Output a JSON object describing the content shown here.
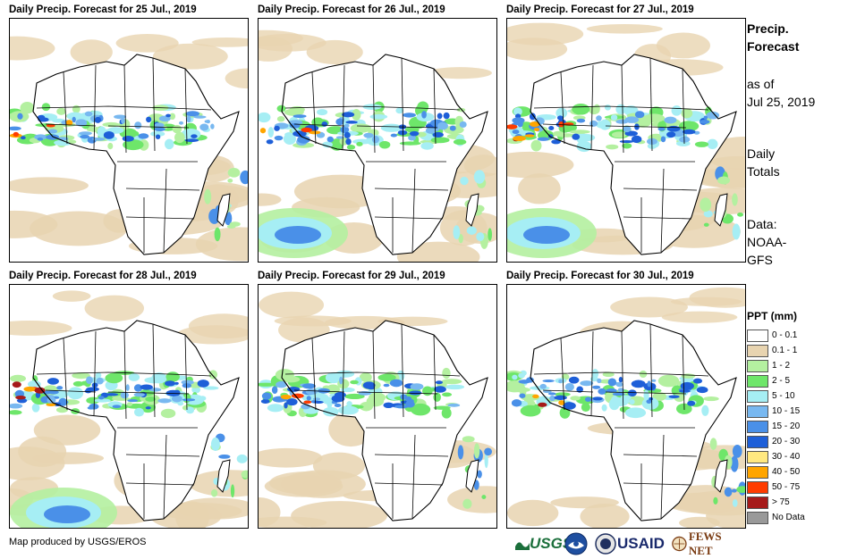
{
  "panels": [
    {
      "title": "Daily Precip. Forecast for 25 Jul., 2019"
    },
    {
      "title": "Daily Precip. Forecast for 26 Jul., 2019"
    },
    {
      "title": "Daily Precip. Forecast for 27 Jul., 2019"
    },
    {
      "title": "Daily Precip. Forecast for 28 Jul., 2019"
    },
    {
      "title": "Daily Precip. Forecast for 29 Jul., 2019"
    },
    {
      "title": "Daily Precip. Forecast for 30 Jul., 2019"
    }
  ],
  "side": {
    "heading_line1": "Precip.",
    "heading_line2": "Forecast",
    "asof_line1": "as of",
    "asof_line2": "Jul 25, 2019",
    "totals_line1": "Daily",
    "totals_line2": "Totals",
    "data_line1": "Data:",
    "data_line2": "NOAA-",
    "data_line3": "GFS"
  },
  "legend": {
    "title": "PPT (mm)",
    "items": [
      {
        "label": "0 - 0.1",
        "color": "#ffffff"
      },
      {
        "label": "0.1 - 1",
        "color": "#e8d4b0"
      },
      {
        "label": "1 - 2",
        "color": "#b4f0a0"
      },
      {
        "label": "2 - 5",
        "color": "#6ee66a"
      },
      {
        "label": "5 - 10",
        "color": "#a6eef4"
      },
      {
        "label": "10 - 15",
        "color": "#78b8f0"
      },
      {
        "label": "15 - 20",
        "color": "#4a90e8"
      },
      {
        "label": "20 - 30",
        "color": "#1e5fd8"
      },
      {
        "label": "30 - 40",
        "color": "#ffe880"
      },
      {
        "label": "40 - 50",
        "color": "#ffa500"
      },
      {
        "label": "50 - 75",
        "color": "#ff3c00"
      },
      {
        "label": "> 75",
        "color": "#a61a1a"
      },
      {
        "label": "No Data",
        "color": "#999999"
      }
    ]
  },
  "credit": "Map produced by USGS/EROS",
  "logos": {
    "usgs": "USGS",
    "usaid": "USAID",
    "fews": "FEWS NET"
  }
}
